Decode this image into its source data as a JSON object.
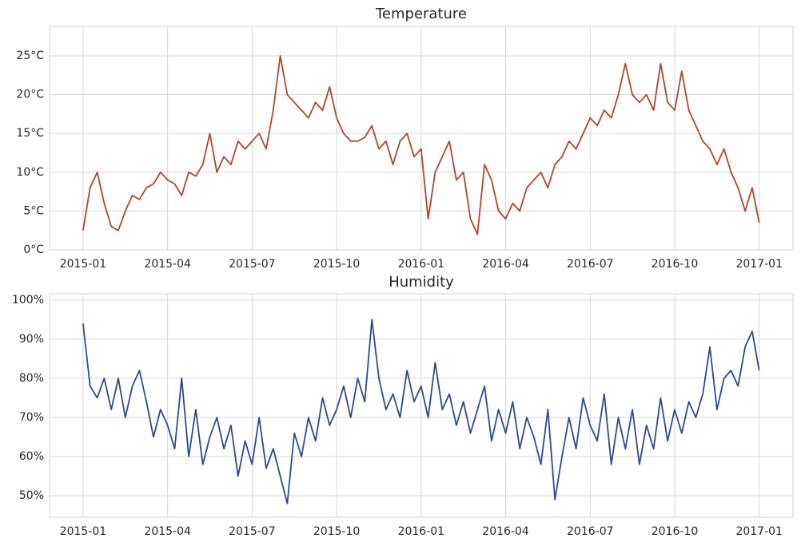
{
  "chart_data": [
    {
      "type": "line",
      "title": "Temperature",
      "x": [
        0,
        0.25,
        0.5,
        0.75,
        1,
        1.25,
        1.5,
        1.75,
        2,
        2.25,
        2.5,
        2.75,
        3,
        3.25,
        3.5,
        3.75,
        4,
        4.25,
        4.5,
        4.75,
        5,
        5.25,
        5.5,
        5.75,
        6,
        6.25,
        6.5,
        6.75,
        7,
        7.25,
        7.5,
        7.75,
        8,
        8.25,
        8.5,
        8.75,
        9,
        9.25,
        9.5,
        9.75,
        10,
        10.25,
        10.5,
        10.75,
        11,
        11.25,
        11.5,
        11.75,
        12,
        12.25,
        12.5,
        12.75,
        13,
        13.25,
        13.5,
        13.75,
        14,
        14.25,
        14.5,
        14.75,
        15,
        15.25,
        15.5,
        15.75,
        16,
        16.25,
        16.5,
        16.75,
        17,
        17.25,
        17.5,
        17.75,
        18,
        18.25,
        18.5,
        18.75,
        19,
        19.25,
        19.5,
        19.75,
        20,
        20.25,
        20.5,
        20.75,
        21,
        21.25,
        21.5,
        21.75,
        22,
        22.25,
        22.5,
        22.75,
        23,
        23.25,
        23.5,
        23.75,
        24
      ],
      "series": [
        {
          "color": "#b5432a",
          "values": [
            2.5,
            8,
            10,
            6,
            3,
            2.5,
            5,
            7,
            6.5,
            8,
            8.5,
            10,
            9,
            8.5,
            7,
            10,
            9.5,
            11,
            15,
            10,
            12,
            11,
            14,
            13,
            14,
            15,
            13,
            18,
            25,
            20,
            19,
            18,
            17,
            19,
            18,
            21,
            17,
            15,
            14,
            14,
            14.5,
            16,
            13,
            14,
            11,
            14,
            15,
            12,
            13,
            4,
            10,
            12,
            14,
            9,
            10,
            4,
            2,
            11,
            9,
            5,
            4,
            6,
            5,
            8,
            9,
            10,
            8,
            11,
            12,
            14,
            13,
            15,
            17,
            16,
            18,
            17,
            20,
            24,
            20,
            19,
            20,
            18,
            24,
            19,
            18,
            23,
            18,
            16,
            14,
            13,
            11,
            13,
            10,
            8,
            5,
            8,
            3.5
          ]
        }
      ],
      "xlim": [
        -1.19,
        25.2
      ],
      "xticks": [
        {
          "value": 0,
          "label": "2015-01"
        },
        {
          "value": 3,
          "label": "2015-04"
        },
        {
          "value": 6,
          "label": "2015-07"
        },
        {
          "value": 9,
          "label": "2015-10"
        },
        {
          "value": 12,
          "label": "2016-01"
        },
        {
          "value": 15,
          "label": "2016-04"
        },
        {
          "value": 18,
          "label": "2016-07"
        },
        {
          "value": 21,
          "label": "2016-10"
        },
        {
          "value": 24,
          "label": "2017-01"
        }
      ],
      "ylim": [
        0,
        28.8
      ],
      "yticks": [
        {
          "value": 0,
          "label": "0°C"
        },
        {
          "value": 5,
          "label": "5°C"
        },
        {
          "value": 10,
          "label": "10°C"
        },
        {
          "value": 15,
          "label": "15°C"
        },
        {
          "value": 20,
          "label": "20°C"
        },
        {
          "value": 25,
          "label": "25°C"
        }
      ],
      "grid": true
    },
    {
      "type": "line",
      "title": "Humidity",
      "x": [
        0,
        0.25,
        0.5,
        0.75,
        1,
        1.25,
        1.5,
        1.75,
        2,
        2.25,
        2.5,
        2.75,
        3,
        3.25,
        3.5,
        3.75,
        4,
        4.25,
        4.5,
        4.75,
        5,
        5.25,
        5.5,
        5.75,
        6,
        6.25,
        6.5,
        6.75,
        7,
        7.25,
        7.5,
        7.75,
        8,
        8.25,
        8.5,
        8.75,
        9,
        9.25,
        9.5,
        9.75,
        10,
        10.25,
        10.5,
        10.75,
        11,
        11.25,
        11.5,
        11.75,
        12,
        12.25,
        12.5,
        12.75,
        13,
        13.25,
        13.5,
        13.75,
        14,
        14.25,
        14.5,
        14.75,
        15,
        15.25,
        15.5,
        15.75,
        16,
        16.25,
        16.5,
        16.75,
        17,
        17.25,
        17.5,
        17.75,
        18,
        18.25,
        18.5,
        18.75,
        19,
        19.25,
        19.5,
        19.75,
        20,
        20.25,
        20.5,
        20.75,
        21,
        21.25,
        21.5,
        21.75,
        22,
        22.25,
        22.5,
        22.75,
        23,
        23.25,
        23.5,
        23.75,
        24
      ],
      "series": [
        {
          "color": "#2b4a93",
          "values": [
            94,
            78,
            75,
            80,
            72,
            80,
            70,
            78,
            82,
            74,
            65,
            72,
            68,
            62,
            80,
            60,
            72,
            58,
            65,
            70,
            62,
            68,
            55,
            64,
            58,
            70,
            57,
            62,
            55,
            48,
            66,
            60,
            70,
            64,
            75,
            68,
            72,
            78,
            70,
            80,
            74,
            95,
            80,
            72,
            76,
            70,
            82,
            74,
            78,
            70,
            84,
            72,
            76,
            68,
            74,
            66,
            72,
            78,
            64,
            72,
            66,
            74,
            62,
            70,
            65,
            58,
            72,
            49,
            60,
            70,
            62,
            75,
            68,
            64,
            76,
            58,
            70,
            62,
            72,
            58,
            68,
            62,
            75,
            64,
            72,
            66,
            74,
            70,
            76,
            88,
            72,
            80,
            82,
            78,
            88,
            92,
            82
          ]
        }
      ],
      "xlim": [
        -1.19,
        25.2
      ],
      "xticks": [
        {
          "value": 0,
          "label": "2015-01"
        },
        {
          "value": 3,
          "label": "2015-04"
        },
        {
          "value": 6,
          "label": "2015-07"
        },
        {
          "value": 9,
          "label": "2015-10"
        },
        {
          "value": 12,
          "label": "2016-01"
        },
        {
          "value": 15,
          "label": "2016-04"
        },
        {
          "value": 18,
          "label": "2016-07"
        },
        {
          "value": 21,
          "label": "2016-10"
        },
        {
          "value": 24,
          "label": "2017-01"
        }
      ],
      "ylim": [
        44.5,
        101.6
      ],
      "yticks": [
        {
          "value": 50,
          "label": "50%"
        },
        {
          "value": 60,
          "label": "60%"
        },
        {
          "value": 70,
          "label": "70%"
        },
        {
          "value": 80,
          "label": "80%"
        },
        {
          "value": 90,
          "label": "90%"
        },
        {
          "value": 100,
          "label": "100%"
        }
      ],
      "grid": true
    }
  ]
}
